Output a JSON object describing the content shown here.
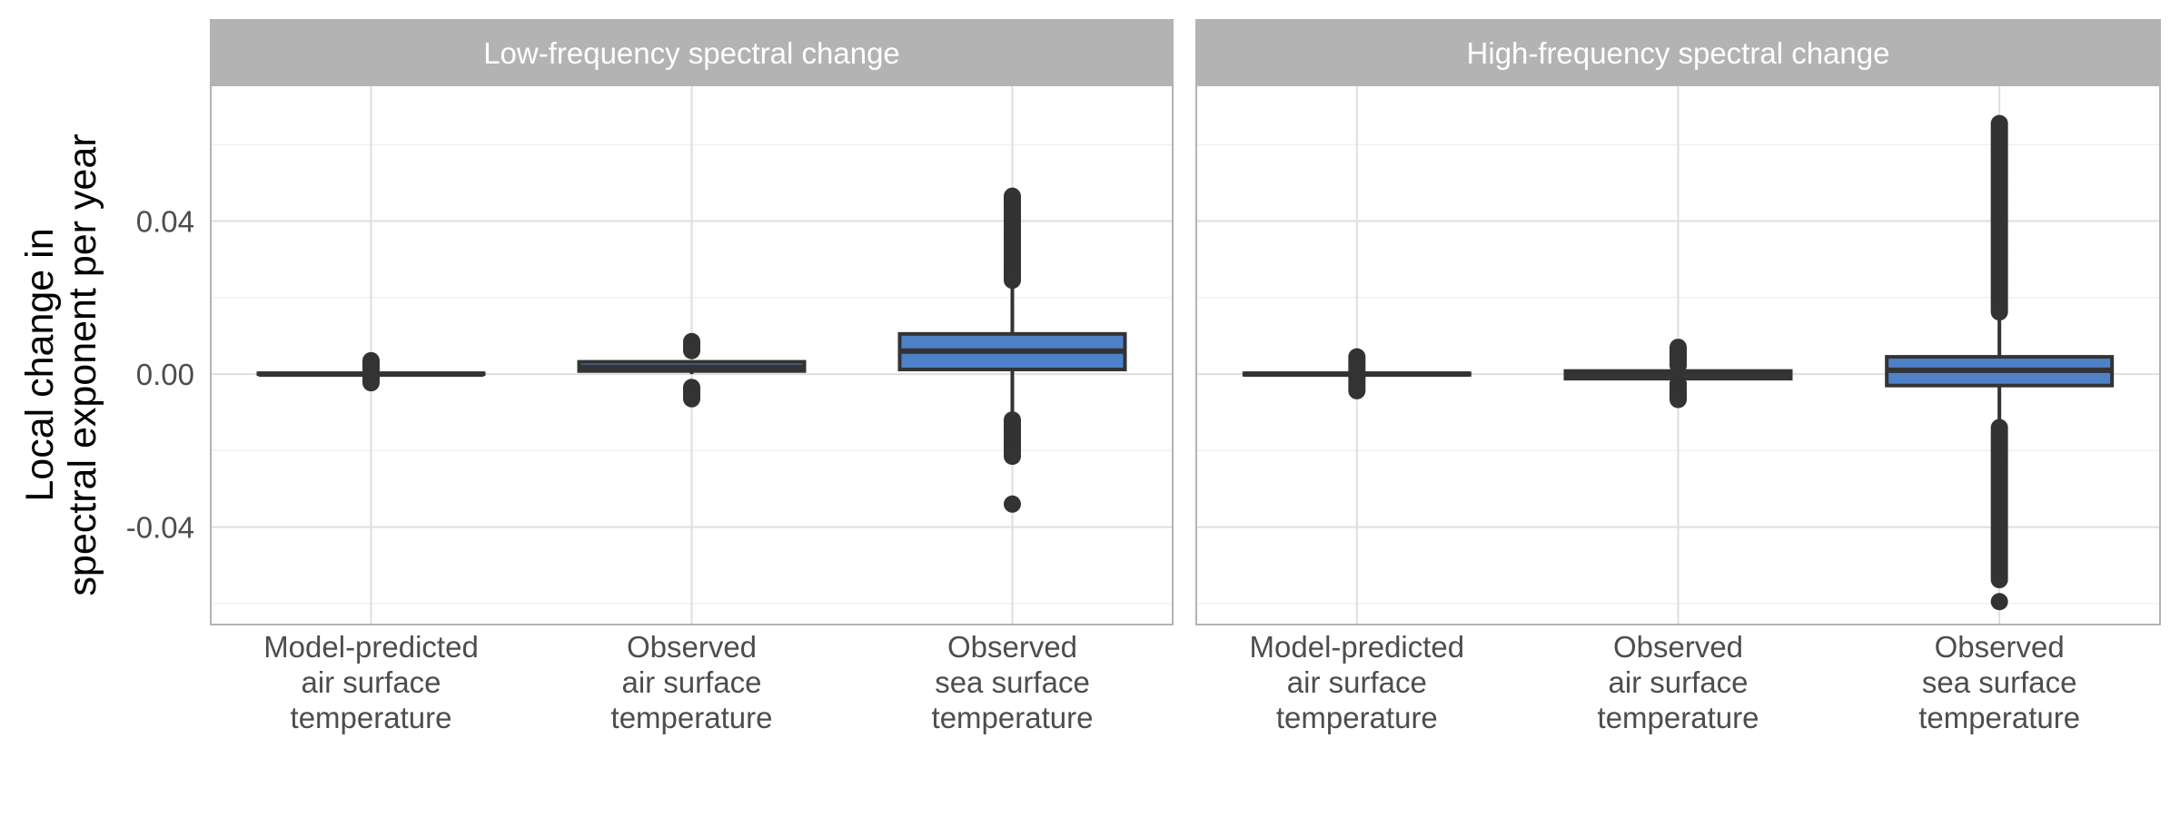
{
  "chart_data": {
    "type": "boxplot",
    "ylabel_lines": [
      "Local change in",
      "spectral exponent per year"
    ],
    "y_ticks": [
      -0.04,
      0.0,
      0.04
    ],
    "y_tick_labels": [
      "-0.04",
      "0.00",
      "0.04"
    ],
    "ylim": [
      -0.0655,
      0.0755
    ],
    "grid": true,
    "categories": [
      [
        "Model-predicted",
        "air surface",
        "temperature"
      ],
      [
        "Observed",
        "air surface",
        "temperature"
      ],
      [
        "Observed",
        "sea surface",
        "temperature"
      ]
    ],
    "colors": {
      "box_fill": "#4f81c7",
      "line": "#333333",
      "strip_bg": "#b3b3b3",
      "panel_border": "#b3b3b3",
      "grid_major": "#dedede",
      "grid_minor": "#eeeeee"
    },
    "panels": [
      {
        "title": "Low-frequency spectral change",
        "boxes": [
          {
            "q1": 0.0,
            "median": 0.0,
            "q3": 0.0002,
            "whisker_low": -0.0002,
            "whisker_high": 0.0005,
            "outliers_low_range": [
              -0.0025,
              -0.0005
            ],
            "outliers_high_range": [
              0.0008,
              0.0035
            ],
            "outliers_extra": []
          },
          {
            "q1": 0.0008,
            "median": 0.0018,
            "q3": 0.0032,
            "whisker_low": 0.0,
            "whisker_high": 0.0035,
            "outliers_low_range": [
              -0.0065,
              -0.0035
            ],
            "outliers_high_range": [
              0.006,
              0.0085
            ],
            "outliers_extra": []
          },
          {
            "q1": 0.0012,
            "median": 0.006,
            "q3": 0.0105,
            "whisker_low": -0.0115,
            "whisker_high": 0.0235,
            "outliers_low_range": [
              -0.022,
              -0.012
            ],
            "outliers_high_range": [
              0.024,
              0.0465
            ],
            "outliers_extra": [
              -0.034
            ]
          }
        ]
      },
      {
        "title": "High-frequency spectral change",
        "boxes": [
          {
            "q1": -0.0002,
            "median": 0.0,
            "q3": 0.0002,
            "whisker_low": -0.0006,
            "whisker_high": 0.0006,
            "outliers_low_range": [
              -0.0045,
              -0.0008
            ],
            "outliers_high_range": [
              0.0008,
              0.0045
            ],
            "outliers_extra": []
          },
          {
            "q1": -0.0012,
            "median": 0.0,
            "q3": 0.0008,
            "whisker_low": -0.0015,
            "whisker_high": 0.0012,
            "outliers_low_range": [
              -0.007,
              -0.0025
            ],
            "outliers_high_range": [
              0.002,
              0.007
            ],
            "outliers_extra": []
          },
          {
            "q1": -0.003,
            "median": 0.001,
            "q3": 0.0045,
            "whisker_low": -0.0135,
            "whisker_high": 0.0155,
            "outliers_low_range": [
              -0.054,
              -0.014
            ],
            "outliers_high_range": [
              0.016,
              0.0655
            ],
            "outliers_extra": [
              -0.0595
            ]
          }
        ]
      }
    ]
  }
}
